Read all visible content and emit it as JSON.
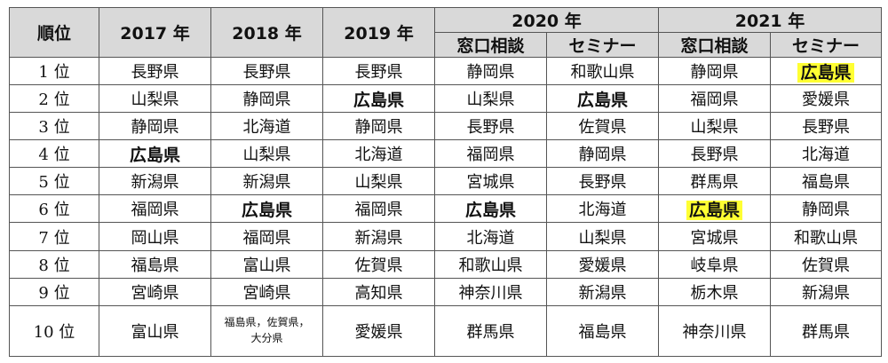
{
  "headers": {
    "rank": "順位",
    "y2017": "2017 年",
    "y2018": "2018 年",
    "y2019": "2019 年",
    "y2020": "2020 年",
    "y2021": "2021 年",
    "sub2020a": "窓口相談",
    "sub2020b": "セミナー",
    "sub2021a": "窓口相談",
    "sub2021b": "セミナー"
  },
  "highlight_color": "#ffff33",
  "rows": [
    [
      "1 位",
      "長野県",
      "長野県",
      "長野県",
      "静岡県",
      "和歌山県",
      "静岡県",
      "広島県"
    ],
    [
      "2 位",
      "山梨県",
      "静岡県",
      "広島県",
      "山梨県",
      "広島県",
      "福岡県",
      "愛媛県"
    ],
    [
      "3 位",
      "静岡県",
      "北海道",
      "静岡県",
      "長野県",
      "佐賀県",
      "山梨県",
      "長野県"
    ],
    [
      "4 位",
      "広島県",
      "山梨県",
      "北海道",
      "福岡県",
      "静岡県",
      "長野県",
      "北海道"
    ],
    [
      "5 位",
      "新潟県",
      "新潟県",
      "山梨県",
      "宮城県",
      "長野県",
      "群馬県",
      "福島県"
    ],
    [
      "6 位",
      "福岡県",
      "広島県",
      "福岡県",
      "広島県",
      "北海道",
      "広島県",
      "静岡県"
    ],
    [
      "7 位",
      "岡山県",
      "福岡県",
      "新潟県",
      "北海道",
      "山梨県",
      "宮城県",
      "和歌山県"
    ],
    [
      "8 位",
      "福島県",
      "富山県",
      "佐賀県",
      "和歌山県",
      "愛媛県",
      "岐阜県",
      "佐賀県"
    ],
    [
      "9 位",
      "宮崎県",
      "宮崎県",
      "高知県",
      "神奈川県",
      "新潟県",
      "栃木県",
      "新潟県"
    ],
    [
      "10 位",
      "富山県",
      [
        "福島県，佐賀県，",
        "大分県"
      ],
      "愛媛県",
      "群馬県",
      "福島県",
      "神奈川県",
      "群馬県"
    ]
  ]
}
